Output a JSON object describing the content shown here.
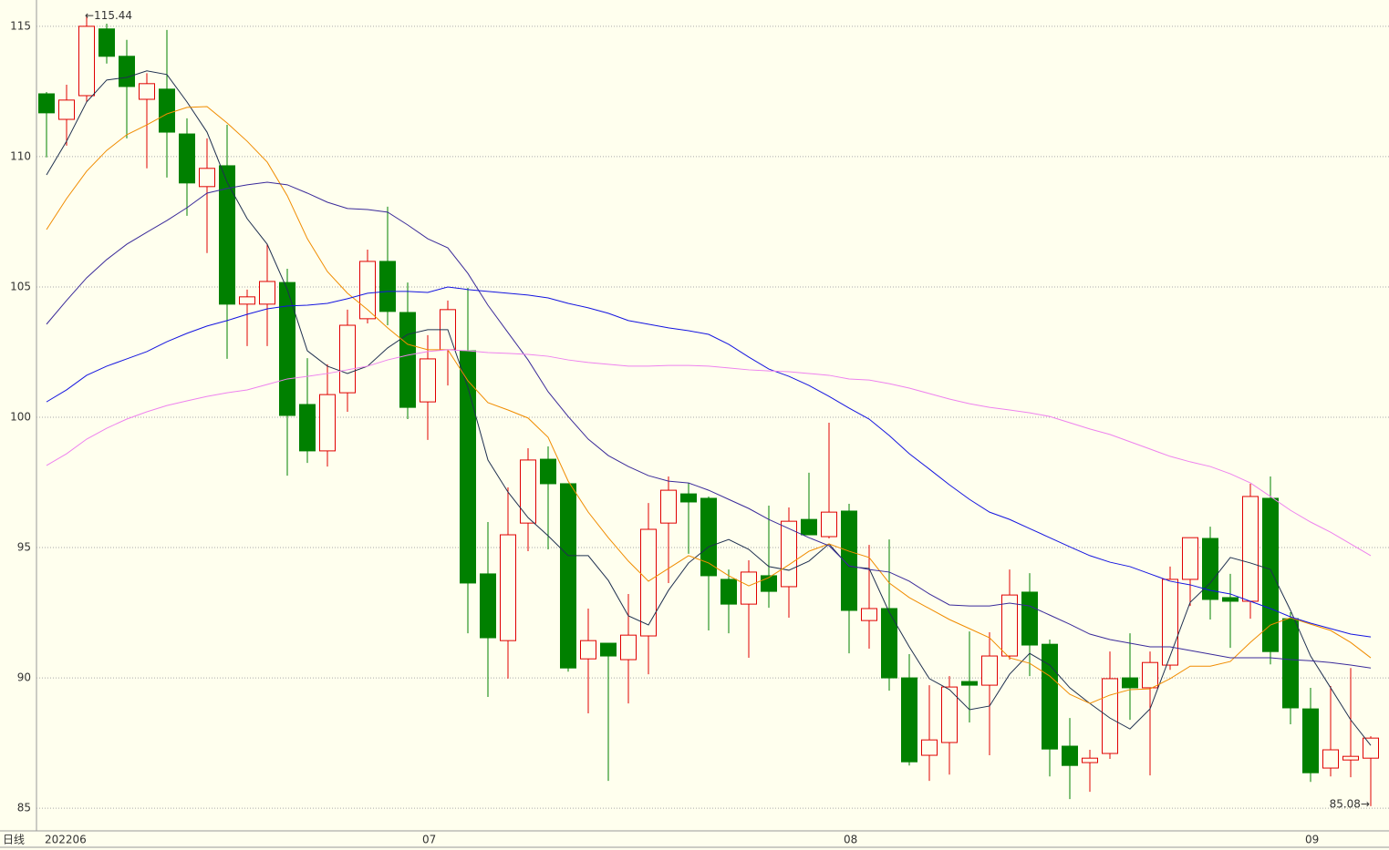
{
  "chart_data": {
    "type": "candlestick",
    "period_label": "日线",
    "categories": [
      "202206",
      null,
      null,
      null,
      null,
      null,
      null,
      null,
      null,
      null,
      null,
      null,
      null,
      null,
      null,
      null,
      null,
      null,
      null,
      "07",
      null,
      null,
      null,
      null,
      null,
      null,
      null,
      null,
      null,
      null,
      null,
      null,
      null,
      null,
      null,
      null,
      null,
      null,
      null,
      null,
      "08",
      null,
      null,
      null,
      null,
      null,
      null,
      null,
      null,
      null,
      null,
      null,
      null,
      null,
      null,
      null,
      null,
      null,
      null,
      null,
      null,
      null,
      null,
      "09",
      null,
      null,
      null
    ],
    "open": [
      112.41,
      111.43,
      112.34,
      114.9,
      113.85,
      112.2,
      112.59,
      110.87,
      108.85,
      109.65,
      104.34,
      104.34,
      105.17,
      100.49,
      98.71,
      100.94,
      103.78,
      105.98,
      104.02,
      100.59,
      102.59,
      102.55,
      93.99,
      91.43,
      95.94,
      98.39,
      97.45,
      90.73,
      91.33,
      90.7,
      91.61,
      95.94,
      97.06,
      96.89,
      93.78,
      92.83,
      93.92,
      93.5,
      96.08,
      95.42,
      96.4,
      92.2,
      92.66,
      90.0,
      87.03,
      87.52,
      89.86,
      89.72,
      90.84,
      93.29,
      91.29,
      87.38,
      86.75,
      87.1,
      90.0,
      89.62,
      90.49,
      93.78,
      95.35,
      93.08,
      92.94,
      96.89,
      92.27,
      88.81,
      86.54,
      86.85,
      86.92
    ],
    "high": [
      112.48,
      112.76,
      115.44,
      115.1,
      114.48,
      113.2,
      114.86,
      111.47,
      110.7,
      111.22,
      104.9,
      106.64,
      105.7,
      102.27,
      102.03,
      104.13,
      106.43,
      108.08,
      105.17,
      103.15,
      104.48,
      104.97,
      95.98,
      97.31,
      98.81,
      98.88,
      97.45,
      92.66,
      91.33,
      93.22,
      96.71,
      97.73,
      97.48,
      96.96,
      94.16,
      94.51,
      96.61,
      96.54,
      97.87,
      99.79,
      96.68,
      95.1,
      95.31,
      90.91,
      89.72,
      90.07,
      91.78,
      91.75,
      94.16,
      94.02,
      91.47,
      88.46,
      87.24,
      91.01,
      91.71,
      91.01,
      94.27,
      95.38,
      95.8,
      93.99,
      97.45,
      97.73,
      92.52,
      89.62,
      89.69,
      90.38,
      87.76
    ],
    "low": [
      109.97,
      110.42,
      112.1,
      113.57,
      110.7,
      109.55,
      109.2,
      107.73,
      106.3,
      102.24,
      102.73,
      102.73,
      97.76,
      98.25,
      98.11,
      100.21,
      103.6,
      103.53,
      99.93,
      99.13,
      101.22,
      91.71,
      89.27,
      89.97,
      94.86,
      94.93,
      90.24,
      88.64,
      86.05,
      89.02,
      90.14,
      93.64,
      94.76,
      91.82,
      91.71,
      90.77,
      92.69,
      92.31,
      95.49,
      95.35,
      90.94,
      91.12,
      89.51,
      86.64,
      86.05,
      86.29,
      88.29,
      87.03,
      90.7,
      90.07,
      86.22,
      85.35,
      85.63,
      86.89,
      88.39,
      86.26,
      90.31,
      92.76,
      92.24,
      91.15,
      92.27,
      90.52,
      88.22,
      86.01,
      86.22,
      86.19,
      85.08
    ],
    "close": [
      111.68,
      112.17,
      115.0,
      113.85,
      112.69,
      112.8,
      110.94,
      108.99,
      109.55,
      104.34,
      104.62,
      105.21,
      100.07,
      98.71,
      100.87,
      103.53,
      105.98,
      104.06,
      100.38,
      102.24,
      104.13,
      93.64,
      91.54,
      95.49,
      98.36,
      97.45,
      90.38,
      91.43,
      90.84,
      91.64,
      95.7,
      97.2,
      96.75,
      93.92,
      92.83,
      94.06,
      93.32,
      96.01,
      95.49,
      96.36,
      92.59,
      92.66,
      90.0,
      86.78,
      87.62,
      89.65,
      89.72,
      90.84,
      93.18,
      91.26,
      87.27,
      86.64,
      86.92,
      89.97,
      89.62,
      90.59,
      93.78,
      95.38,
      93.01,
      92.94,
      96.96,
      91.01,
      88.85,
      86.36,
      87.24,
      86.99,
      87.69
    ],
    "up_color": "#e00000",
    "down_color": "#008000",
    "lines": [
      {
        "color": "#1f3050",
        "values": [
          109.3,
          110.59,
          112.1,
          112.94,
          113.04,
          113.29,
          113.15,
          112.1,
          110.94,
          109.02,
          107.62,
          106.64,
          104.9,
          102.55,
          101.96,
          101.68,
          101.96,
          102.66,
          103.18,
          103.36,
          103.36,
          101.15,
          98.36,
          97.13,
          96.15,
          95.45,
          94.69,
          94.69,
          93.74,
          92.38,
          92.03,
          93.36,
          94.41,
          95.03,
          95.31,
          94.93,
          94.27,
          94.13,
          94.48,
          95.14,
          94.27,
          94.2,
          92.52,
          91.19,
          89.97,
          89.55,
          88.78,
          88.92,
          90.14,
          90.94,
          90.49,
          89.62,
          89.02,
          88.46,
          88.04,
          88.81,
          90.84,
          92.9,
          93.64,
          94.62,
          94.41,
          94.16,
          92.59,
          90.84,
          89.62,
          88.39,
          87.41
        ]
      },
      {
        "color": "#f08c00",
        "values": [
          107.2,
          108.39,
          109.44,
          110.24,
          110.84,
          111.22,
          111.64,
          111.89,
          111.92,
          111.29,
          110.59,
          109.79,
          108.5,
          106.85,
          105.59,
          104.76,
          104.13,
          103.43,
          102.8,
          102.59,
          102.59,
          101.4,
          100.56,
          100.28,
          99.97,
          99.23,
          97.55,
          96.36,
          95.38,
          94.48,
          93.71,
          94.2,
          94.69,
          94.41,
          93.92,
          93.53,
          93.85,
          94.34,
          94.86,
          95.14,
          94.86,
          94.62,
          93.64,
          93.08,
          92.66,
          92.24,
          91.89,
          91.54,
          90.77,
          90.56,
          90.07,
          89.37,
          89.02,
          89.34,
          89.55,
          89.58,
          89.97,
          90.45,
          90.45,
          90.63,
          91.36,
          92.03,
          92.31,
          92.06,
          91.82,
          91.36,
          90.77
        ]
      },
      {
        "color": "#3a2a9a",
        "values": [
          103.57,
          104.48,
          105.35,
          106.05,
          106.64,
          107.1,
          107.55,
          108.04,
          108.6,
          108.78,
          108.92,
          109.02,
          108.92,
          108.6,
          108.25,
          108.01,
          107.97,
          107.87,
          107.38,
          106.85,
          106.5,
          105.52,
          104.3,
          103.25,
          102.2,
          100.98,
          100.03,
          99.16,
          98.53,
          98.11,
          97.76,
          97.55,
          97.48,
          97.2,
          96.85,
          96.5,
          96.08,
          95.73,
          95.38,
          95.07,
          94.3,
          94.16,
          94.06,
          93.71,
          93.22,
          92.8,
          92.76,
          92.76,
          92.87,
          92.76,
          92.41,
          92.06,
          91.68,
          91.47,
          91.33,
          91.19,
          91.19,
          91.05,
          90.91,
          90.77,
          90.77,
          90.77,
          90.7,
          90.66,
          90.59,
          90.49,
          90.38
        ]
      },
      {
        "color": "#1414e0",
        "values": [
          100.59,
          101.05,
          101.61,
          101.96,
          102.24,
          102.52,
          102.9,
          103.22,
          103.5,
          103.71,
          103.95,
          104.16,
          104.27,
          104.3,
          104.37,
          104.55,
          104.76,
          104.83,
          104.83,
          104.79,
          105.0,
          104.9,
          104.83,
          104.76,
          104.69,
          104.58,
          104.37,
          104.2,
          103.99,
          103.71,
          103.57,
          103.43,
          103.32,
          103.18,
          102.8,
          102.31,
          101.85,
          101.57,
          101.22,
          100.8,
          100.35,
          99.93,
          99.3,
          98.6,
          98.01,
          97.41,
          96.85,
          96.36,
          96.08,
          95.73,
          95.38,
          95.03,
          94.69,
          94.44,
          94.27,
          93.99,
          93.71,
          93.57,
          93.36,
          93.22,
          92.94,
          92.66,
          92.34,
          92.1,
          91.89,
          91.68,
          91.57
        ]
      },
      {
        "color": "#ee82ee",
        "values": [
          98.15,
          98.6,
          99.16,
          99.58,
          99.93,
          100.21,
          100.45,
          100.63,
          100.8,
          100.94,
          101.05,
          101.26,
          101.47,
          101.57,
          101.68,
          101.82,
          101.96,
          102.2,
          102.38,
          102.52,
          102.59,
          102.55,
          102.48,
          102.45,
          102.41,
          102.34,
          102.2,
          102.1,
          102.03,
          101.96,
          101.96,
          101.99,
          101.99,
          101.96,
          101.89,
          101.82,
          101.78,
          101.75,
          101.68,
          101.61,
          101.47,
          101.43,
          101.29,
          101.12,
          100.91,
          100.7,
          100.52,
          100.38,
          100.28,
          100.17,
          100.03,
          99.79,
          99.55,
          99.34,
          99.06,
          98.78,
          98.5,
          98.29,
          98.11,
          97.83,
          97.48,
          96.96,
          96.43,
          95.98,
          95.59,
          95.14,
          94.69
        ]
      }
    ],
    "annotations": [
      {
        "text": "←115.44",
        "value": 115.44
      },
      {
        "text": "85.08→",
        "value": 85.08
      }
    ],
    "ylim": [
      84.13,
      116.01
    ],
    "yticks": [
      85,
      90,
      95,
      100,
      105,
      110,
      115
    ],
    "grid": true
  }
}
